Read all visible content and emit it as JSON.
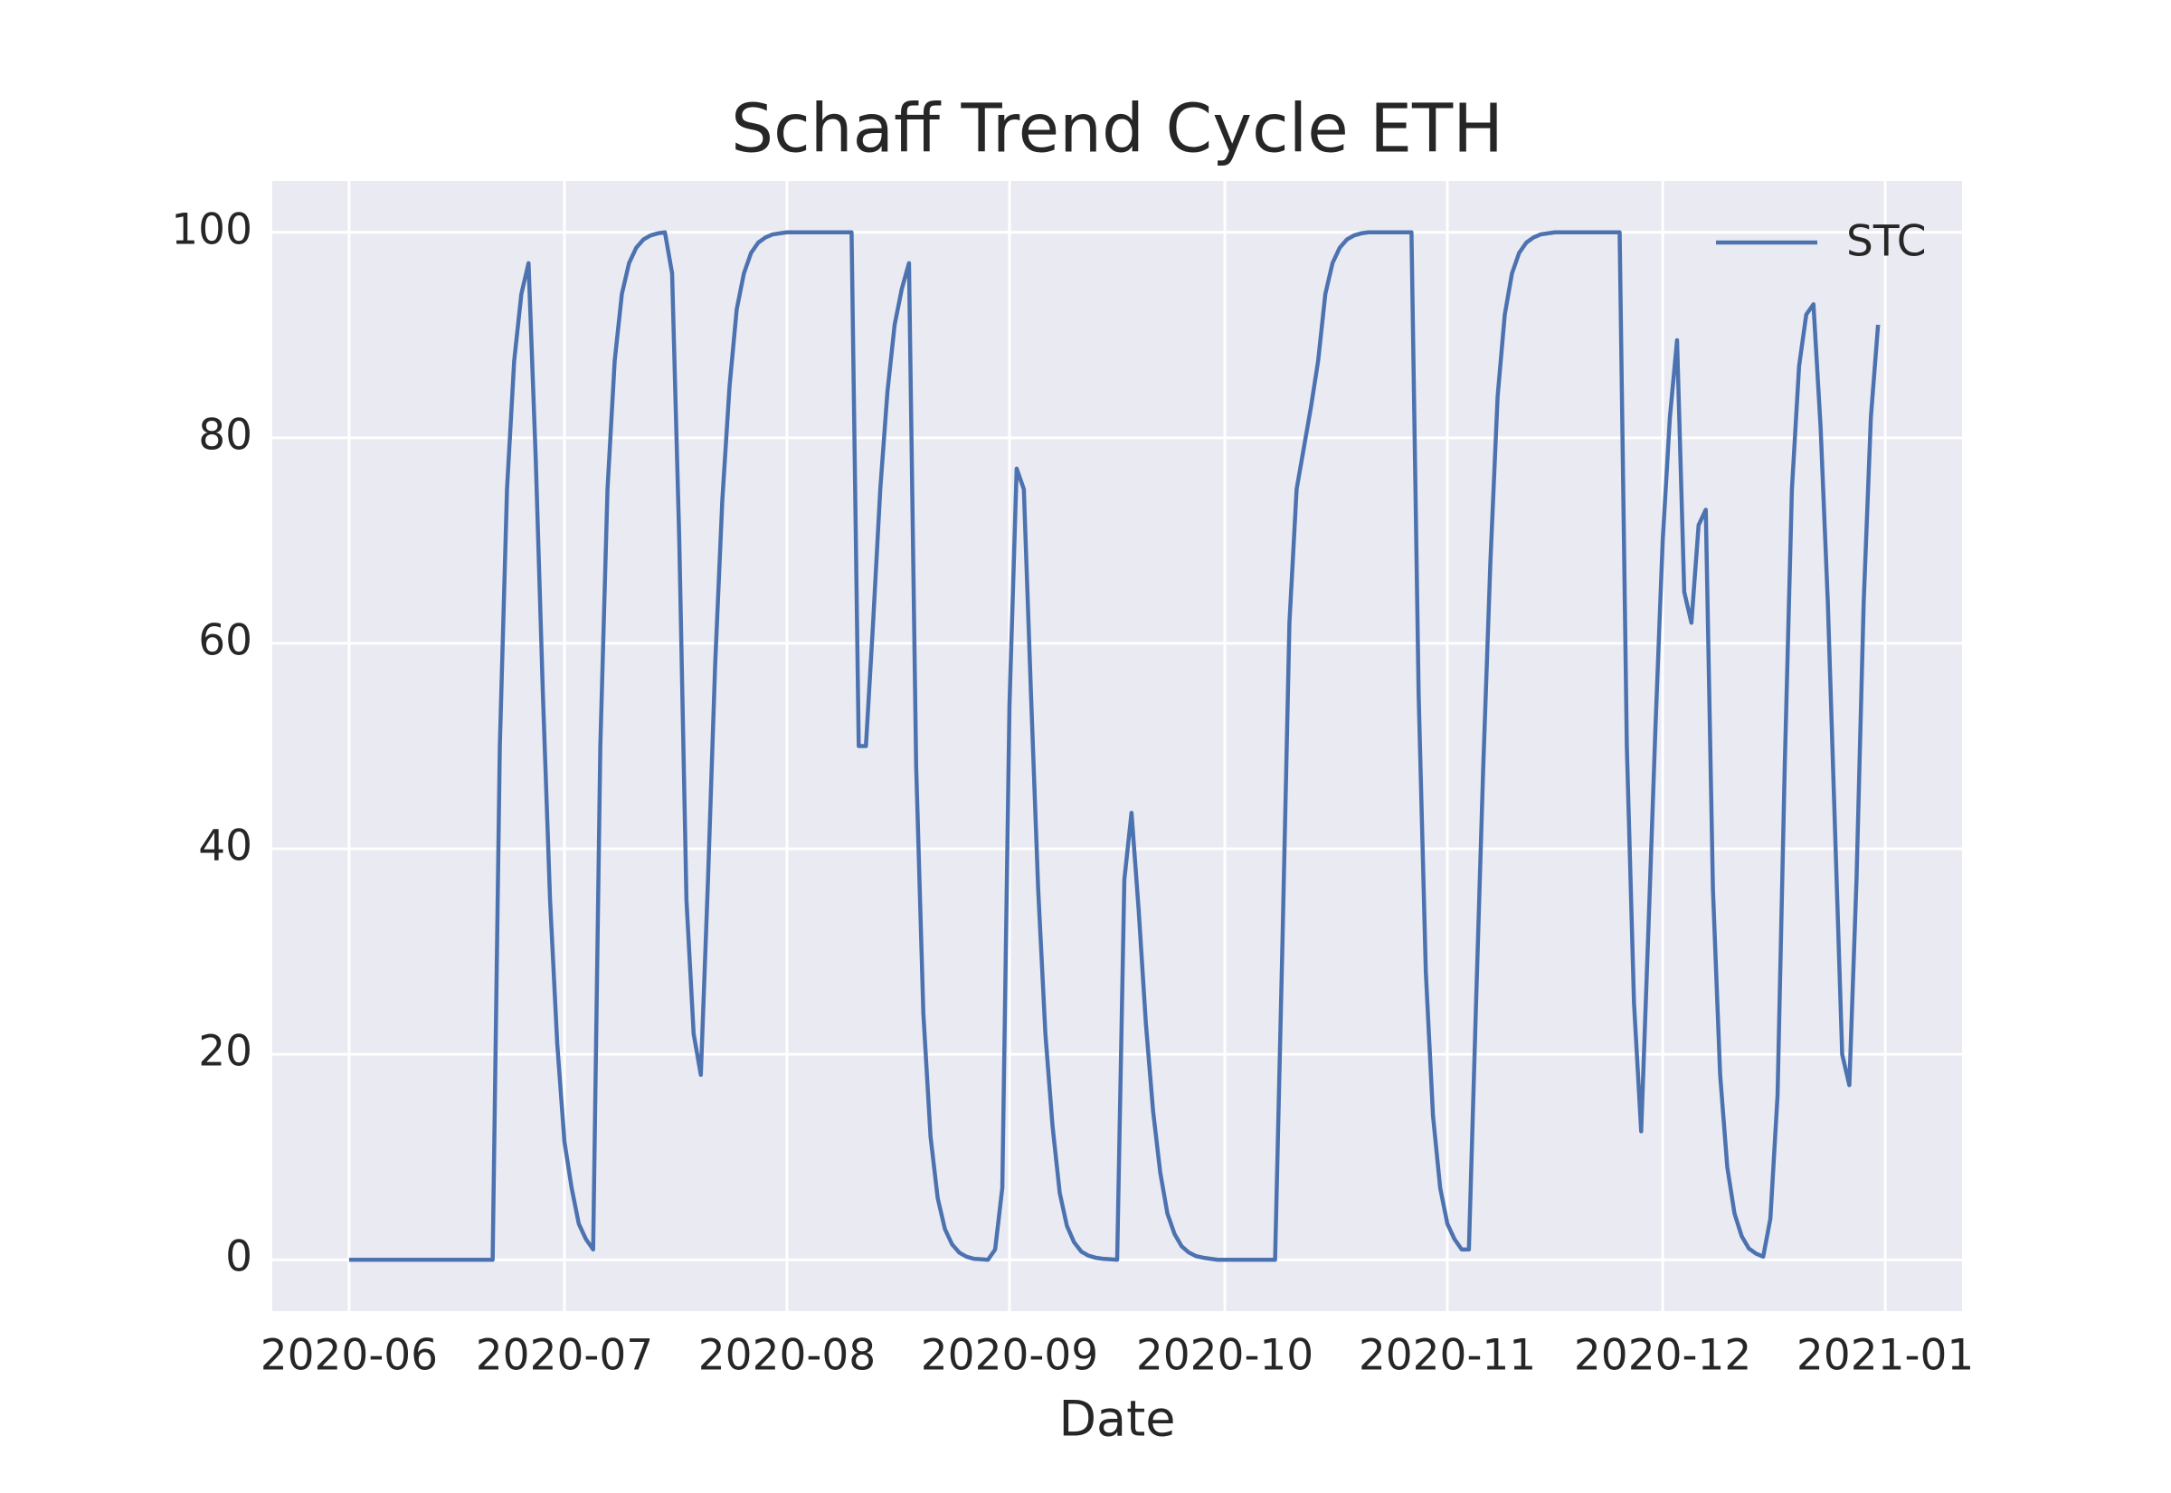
{
  "chart_data": {
    "type": "line",
    "title": "Schaff Trend Cycle ETH",
    "x_label": "Date",
    "categories": [
      "2020-06",
      null,
      null,
      null,
      null,
      null,
      null,
      null,
      null,
      null,
      null,
      null,
      null,
      null,
      null,
      null,
      null,
      null,
      null,
      null,
      null,
      null,
      null,
      null,
      null,
      null,
      null,
      null,
      null,
      null,
      "2020-07",
      null,
      null,
      null,
      null,
      null,
      null,
      null,
      null,
      null,
      null,
      null,
      null,
      null,
      null,
      null,
      null,
      null,
      null,
      null,
      null,
      null,
      null,
      null,
      null,
      null,
      null,
      null,
      null,
      null,
      null,
      "2020-08",
      null,
      null,
      null,
      null,
      null,
      null,
      null,
      null,
      null,
      null,
      null,
      null,
      null,
      null,
      null,
      null,
      null,
      null,
      null,
      null,
      null,
      null,
      null,
      null,
      null,
      null,
      null,
      null,
      null,
      null,
      "2020-09",
      null,
      null,
      null,
      null,
      null,
      null,
      null,
      null,
      null,
      null,
      null,
      null,
      null,
      null,
      null,
      null,
      null,
      null,
      null,
      null,
      null,
      null,
      null,
      null,
      null,
      null,
      null,
      null,
      null,
      "2020-10",
      null,
      null,
      null,
      null,
      null,
      null,
      null,
      null,
      null,
      null,
      null,
      null,
      null,
      null,
      null,
      null,
      null,
      null,
      null,
      null,
      null,
      null,
      null,
      null,
      null,
      null,
      null,
      null,
      null,
      null,
      "2020-11",
      null,
      null,
      null,
      null,
      null,
      null,
      null,
      null,
      null,
      null,
      null,
      null,
      null,
      null,
      null,
      null,
      null,
      null,
      null,
      null,
      null,
      null,
      null,
      null,
      null,
      null,
      null,
      null,
      null,
      "2020-12",
      null,
      null,
      null,
      null,
      null,
      null,
      null,
      null,
      null,
      null,
      null,
      null,
      null,
      null,
      null,
      null,
      null,
      null,
      null,
      null,
      null,
      null,
      null,
      null,
      null,
      null,
      null,
      null,
      null,
      null,
      "2021-01"
    ],
    "series": [
      {
        "name": "STC",
        "color": "#4c72b0",
        "values": [
          0,
          0,
          0,
          0,
          0,
          0,
          0,
          0,
          0,
          0,
          0,
          0,
          0,
          0,
          0,
          0,
          0,
          0,
          0,
          0,
          0,
          50,
          75,
          87.5,
          94,
          97,
          78,
          55,
          35,
          21,
          11.5,
          7,
          3.5,
          2,
          1,
          50,
          75,
          87.5,
          94,
          97,
          98.5,
          99.3,
          99.7,
          99.9,
          100,
          96,
          70,
          35,
          22,
          18,
          37,
          58,
          74,
          85,
          92.5,
          96,
          98,
          99,
          99.5,
          99.8,
          99.9,
          100,
          100,
          100,
          100,
          100,
          100,
          100,
          100,
          100,
          100,
          50,
          50,
          62,
          75,
          84.5,
          91,
          94.5,
          97,
          48,
          24,
          12,
          6,
          3,
          1.5,
          0.7,
          0.3,
          0.1,
          0.05,
          0,
          1,
          7,
          54,
          77,
          75,
          55,
          36,
          22,
          13,
          6.5,
          3.3,
          1.7,
          0.8,
          0.4,
          0.2,
          0.1,
          0.05,
          0,
          37,
          43.5,
          34,
          23,
          14.5,
          8.5,
          4.5,
          2.5,
          1.3,
          0.7,
          0.35,
          0.2,
          0.1,
          0,
          0,
          0,
          0,
          0,
          0,
          0,
          0,
          0,
          30,
          62,
          75,
          79,
          83,
          87.5,
          94,
          97,
          98.5,
          99.3,
          99.7,
          99.9,
          100,
          100,
          100,
          100,
          100,
          100,
          100,
          55,
          28,
          14,
          7,
          3.5,
          2,
          1,
          1,
          25,
          48,
          68,
          84,
          92,
          96,
          98,
          99,
          99.5,
          99.8,
          99.9,
          100,
          100,
          100,
          100,
          100,
          100,
          100,
          100,
          100,
          100,
          50,
          25,
          12.5,
          32,
          52,
          70,
          82,
          89.5,
          65,
          62,
          71.5,
          73,
          36,
          18,
          9,
          4.5,
          2.3,
          1.1,
          0.6,
          0.3,
          4,
          16,
          48,
          75,
          87,
          92,
          93,
          81,
          64,
          42,
          20,
          17,
          37,
          64,
          82,
          91,
          null
        ]
      }
    ],
    "ylim": [
      -5,
      105
    ],
    "yticks": [
      0,
      20,
      40,
      60,
      80,
      100
    ],
    "grid": true,
    "legend": "upper right",
    "background": "#eaeaf2"
  }
}
